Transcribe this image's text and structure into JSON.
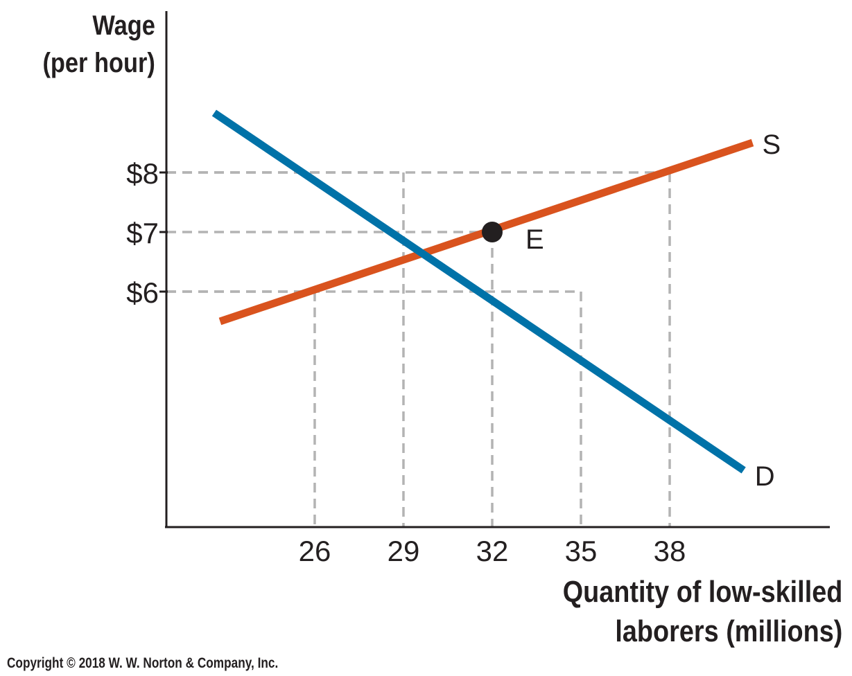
{
  "chart_data": {
    "type": "line",
    "ylabel": "Wage\n(per hour)",
    "xlabel": "Quantity of low-skilled\nlaborers (millions)",
    "x_ticks": [
      26,
      29,
      32,
      35,
      38
    ],
    "x_tick_labels": [
      "26",
      "29",
      "32",
      "35",
      "38"
    ],
    "y_ticks": [
      6,
      7,
      8
    ],
    "y_tick_labels": [
      "$6",
      "$7",
      "$8"
    ],
    "series": [
      {
        "name": "S",
        "color": "#d9531e",
        "points": [
          [
            22.8,
            5.5
          ],
          [
            40.8,
            8.5
          ]
        ]
      },
      {
        "name": "D",
        "color": "#0072a8",
        "points": [
          [
            22.6,
            9.0
          ],
          [
            40.5,
            3.0
          ]
        ]
      }
    ],
    "equilibrium": {
      "label": "E",
      "x": 32,
      "y": 7
    },
    "reference_lines": [
      {
        "x": 29,
        "y": 8
      },
      {
        "x": 38,
        "y": 8
      },
      {
        "x": 32,
        "y": 7
      },
      {
        "x": 26,
        "y": 6
      },
      {
        "x": 35,
        "y": 6
      }
    ],
    "grid": false,
    "legend": "none"
  },
  "copyright": "Copyright © 2018 W. W. Norton & Company, Inc."
}
